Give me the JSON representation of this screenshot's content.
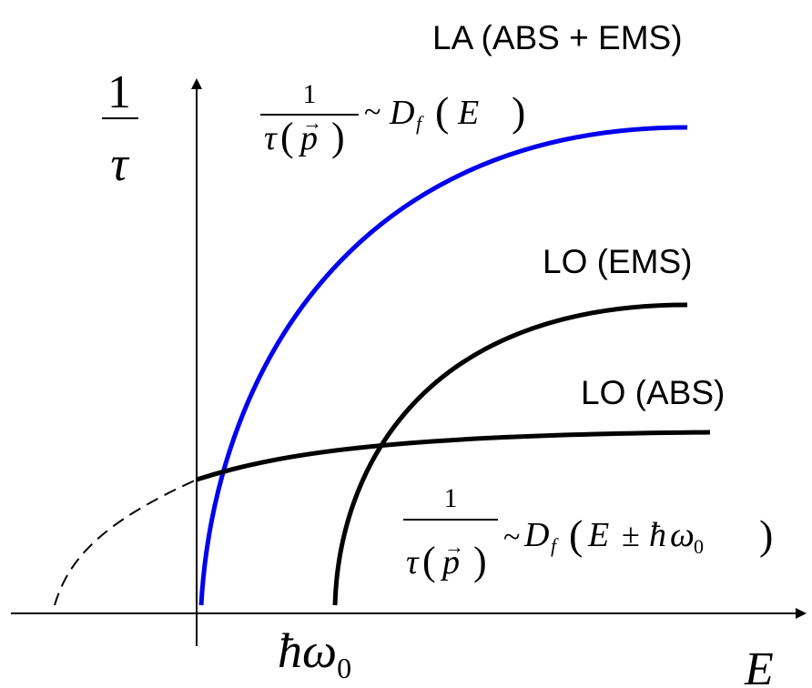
{
  "labels": {
    "la": "LA (ABS + EMS)",
    "lo_ems": "LO (EMS)",
    "lo_abs": "LO (ABS)"
  },
  "axes": {
    "y_num": "1",
    "y_den": "τ",
    "x_label": "E",
    "threshold_hbar": "ħ",
    "threshold_omega": "ω",
    "threshold_sub": "0"
  },
  "formula_top": {
    "num": "1",
    "den_tau": "τ",
    "den_p": "p",
    "tilde": "~",
    "D": "D",
    "sub": "f",
    "arg": "E"
  },
  "formula_bottom": {
    "num": "1",
    "den_tau": "τ",
    "den_p": "p",
    "tilde": "~",
    "D": "D",
    "sub": "f",
    "arg_E": "E",
    "pm": "±",
    "hbar": "ħ",
    "omega": "ω",
    "omega_sub": "0"
  },
  "colors": {
    "la_curve": "#0000ee",
    "lo_curves": "#000000",
    "axes": "#000000"
  }
}
